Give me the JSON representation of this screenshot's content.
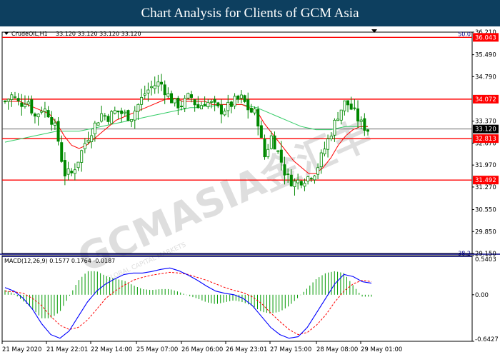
{
  "banner": {
    "title": "Chart Analysis for Clients of GCM Asia"
  },
  "watermark": {
    "main": "GCMASIA金汇丰",
    "sub": "GLOBAL CAPITAL MARKETS"
  },
  "colors": {
    "banner_bg": "#0d3f5f",
    "level_line": "#ff0000",
    "ma_fast": "#ff0000",
    "ma_slow": "#33cc66",
    "macd_line": "#0000ff",
    "signal_line": "#ff0000",
    "histogram": "#009900",
    "candle": "#008800"
  },
  "chart_data": [
    {
      "type": "candlestick",
      "symbol_label": "CrudeOIL,H1",
      "ohlc_label": "33.120 33.120 33.120 33.120",
      "ylim": [
        29.15,
        36.21
      ],
      "y_ticks": [
        "36.210",
        "35.490",
        "34.790",
        "34.072",
        "33.370",
        "33.120",
        "32.670",
        "31.970",
        "31.270",
        "30.550",
        "29.850",
        "29.150"
      ],
      "horizontal_levels": [
        {
          "value": 36.043,
          "label": "36.043",
          "color": "#ff0000"
        },
        {
          "value": 34.072,
          "label": "34.072",
          "color": "#ff0000"
        },
        {
          "value": 32.813,
          "label": "32.813",
          "color": "#ff0000"
        },
        {
          "value": 31.492,
          "label": "31.492",
          "color": "#ff0000"
        }
      ],
      "current_price": {
        "value": 33.12,
        "label": "33.120"
      },
      "fib_labels": [
        {
          "value": 36.043,
          "label": "50.0"
        },
        {
          "value": 29.05,
          "label": "38.2"
        }
      ],
      "x_labels": [
        "21 May 2020",
        "21 May 22:01",
        "22 May 14:00",
        "25 May 07:00",
        "26 May 06:00",
        "26 May 23:01",
        "27 May 15:00",
        "28 May 08:00",
        "29 May 01:00"
      ],
      "close_path": [
        34.0,
        34.2,
        33.9,
        34.1,
        33.5,
        33.8,
        33.6,
        33.0,
        31.7,
        31.7,
        32.2,
        32.8,
        33.2,
        33.6,
        33.5,
        33.7,
        33.6,
        33.5,
        33.9,
        34.3,
        34.5,
        34.6,
        34.2,
        33.9,
        33.9,
        34.2,
        33.8,
        34.0,
        33.9,
        33.7,
        33.8,
        34.0,
        34.1,
        33.7,
        33.6,
        32.2,
        32.9,
        32.3,
        31.6,
        31.4,
        31.5,
        31.6,
        31.8,
        32.4,
        33.0,
        33.6,
        34.0,
        33.7,
        33.3,
        33.1
      ],
      "ma_fast_path": [
        34.0,
        34.0,
        34.0,
        33.9,
        33.8,
        33.7,
        33.6,
        33.3,
        32.9,
        32.6,
        32.5,
        32.6,
        32.8,
        33.0,
        33.2,
        33.4,
        33.5,
        33.6,
        33.7,
        33.8,
        33.9,
        34.0,
        34.1,
        34.1,
        34.0,
        34.0,
        34.0,
        34.0,
        33.9,
        33.9,
        33.9,
        33.9,
        33.9,
        33.8,
        33.7,
        33.3,
        33.0,
        32.7,
        32.4,
        32.1,
        31.9,
        31.7,
        31.7,
        31.9,
        32.2,
        32.6,
        32.9,
        33.1,
        33.2,
        33.2
      ],
      "ma_slow_path": [
        32.7,
        32.75,
        32.8,
        32.85,
        32.9,
        32.95,
        33.0,
        33.05,
        33.05,
        33.05,
        33.05,
        33.1,
        33.15,
        33.2,
        33.25,
        33.3,
        33.35,
        33.4,
        33.45,
        33.5,
        33.55,
        33.6,
        33.65,
        33.7,
        33.75,
        33.8,
        33.8,
        33.85,
        33.85,
        33.9,
        33.9,
        33.9,
        33.9,
        33.85,
        33.8,
        33.7,
        33.6,
        33.5,
        33.4,
        33.3,
        33.2,
        33.15,
        33.1,
        33.1,
        33.1,
        33.15,
        33.2,
        33.2,
        33.2,
        33.2
      ]
    },
    {
      "type": "line",
      "indicator_label": "MACD(12,26,9) 0.1577 0.1764 -0.0187",
      "ylim": [
        -0.6427,
        0.5403
      ],
      "y_ticks": [
        "0.5403",
        "0.00",
        "-0.6427"
      ],
      "macd_path": [
        0.1,
        0.05,
        -0.05,
        -0.2,
        -0.4,
        -0.55,
        -0.6,
        -0.5,
        -0.3,
        -0.1,
        0.05,
        0.15,
        0.22,
        0.28,
        0.3,
        0.3,
        0.32,
        0.35,
        0.37,
        0.33,
        0.27,
        0.2,
        0.12,
        0.05,
        0.02,
        0.0,
        -0.05,
        -0.15,
        -0.3,
        -0.45,
        -0.55,
        -0.6,
        -0.58,
        -0.45,
        -0.25,
        -0.05,
        0.15,
        0.28,
        0.25,
        0.18,
        0.16
      ],
      "signal_path": [
        0.05,
        0.04,
        0.02,
        -0.05,
        -0.15,
        -0.3,
        -0.42,
        -0.48,
        -0.45,
        -0.35,
        -0.2,
        -0.05,
        0.05,
        0.13,
        0.2,
        0.24,
        0.27,
        0.29,
        0.31,
        0.3,
        0.28,
        0.24,
        0.2,
        0.15,
        0.1,
        0.06,
        0.03,
        -0.03,
        -0.12,
        -0.25,
        -0.37,
        -0.48,
        -0.55,
        -0.52,
        -0.42,
        -0.28,
        -0.1,
        0.05,
        0.15,
        0.2,
        0.18
      ]
    }
  ]
}
